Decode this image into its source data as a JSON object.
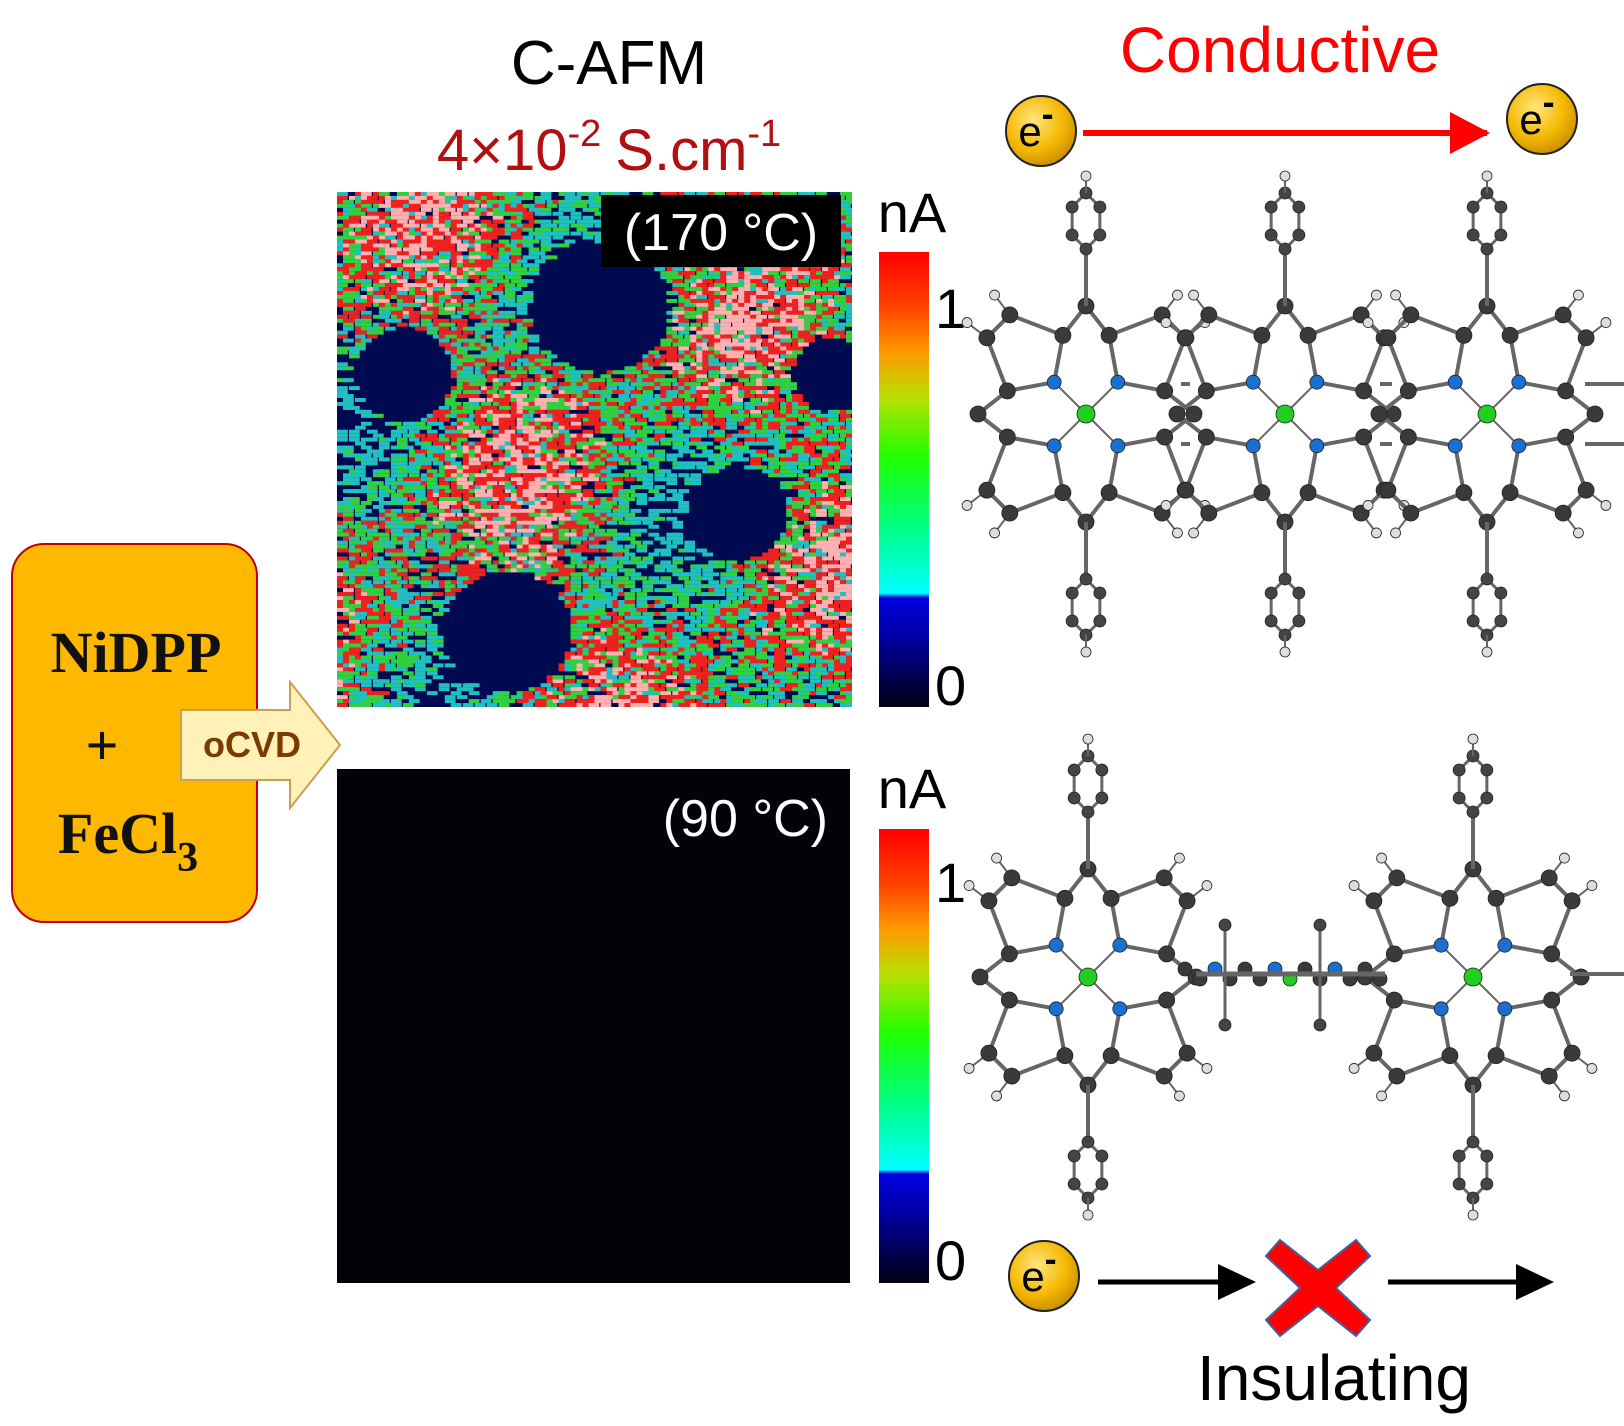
{
  "header": {
    "title": "C-AFM",
    "conductivity": {
      "base": "4×10",
      "exponent": "-2",
      "unit": "S.cm",
      "unit_exponent": "-1"
    }
  },
  "reactants": {
    "lines": [
      "NiDPP",
      "+"
    ],
    "formula": {
      "base": "FeCl",
      "subscript": "3"
    }
  },
  "process": "oCVD",
  "panels": [
    {
      "label": "(170 °C)",
      "colorbar": {
        "unit": "nA",
        "max": 1,
        "min": 0
      }
    },
    {
      "label": "(90 °C)",
      "colorbar": {
        "unit": "nA",
        "max": 1,
        "min": 0
      }
    }
  ],
  "conductive": {
    "label": "Conductive",
    "electrons": [
      {
        "symbol": "e",
        "charge": "-"
      },
      {
        "symbol": "e",
        "charge": "-"
      }
    ]
  },
  "insulating": {
    "label": "Insulating",
    "electron": {
      "symbol": "e",
      "charge": "-"
    }
  }
}
